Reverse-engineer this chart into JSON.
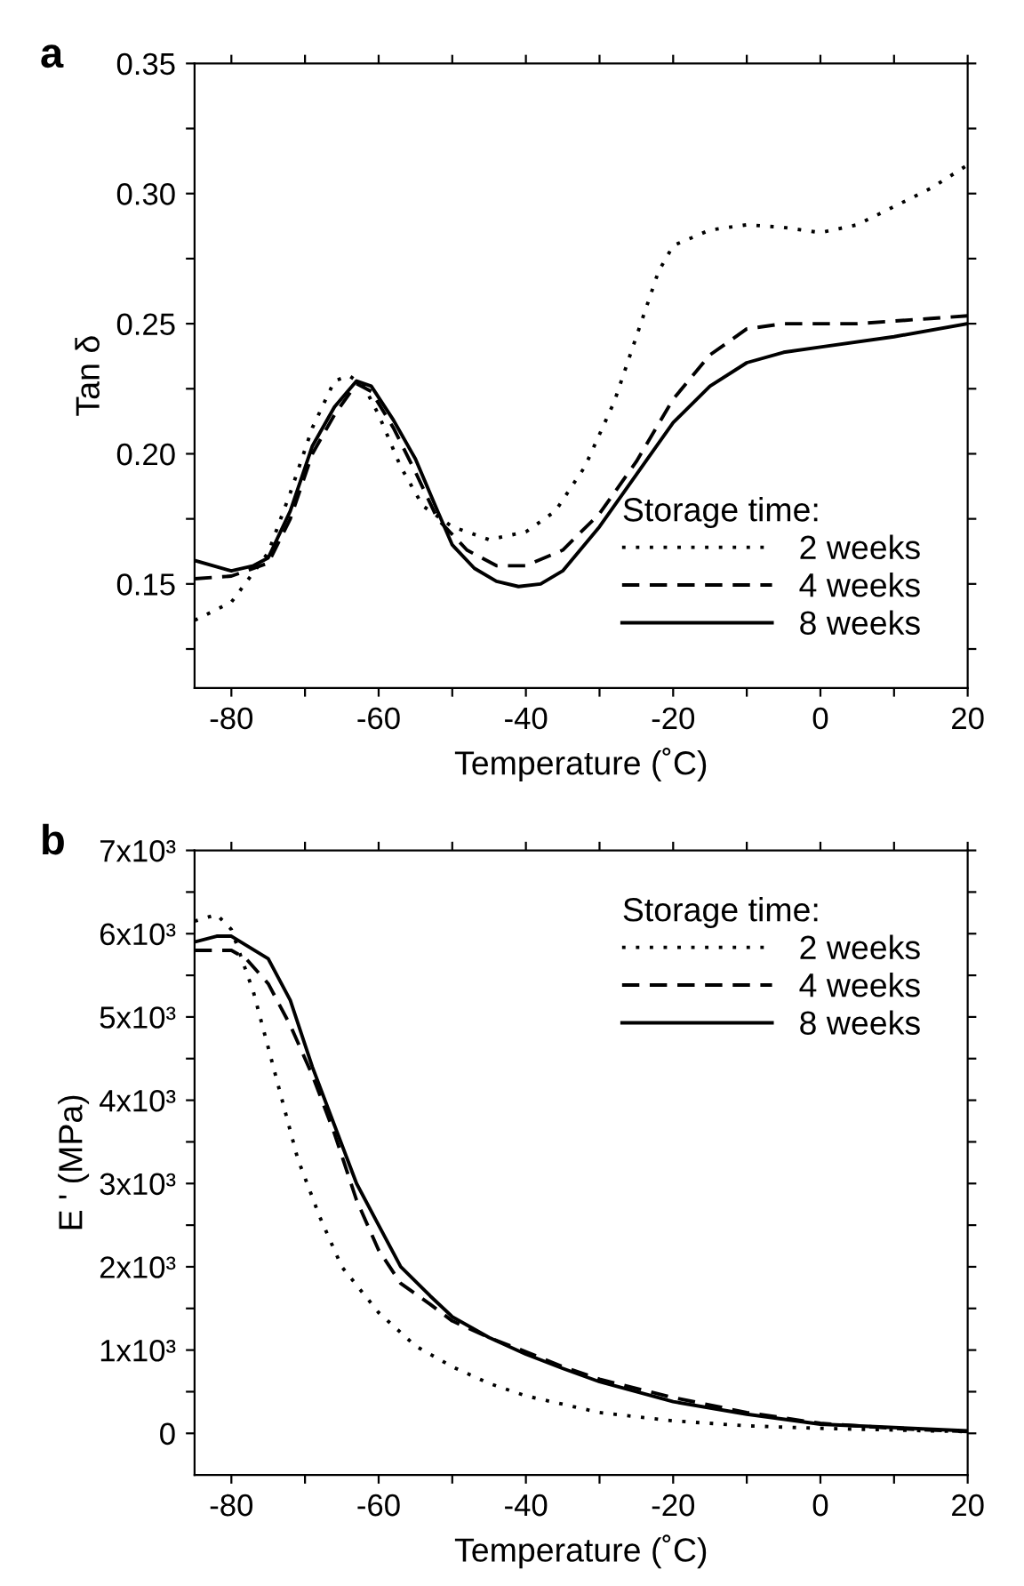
{
  "chart_data": [
    {
      "type": "line",
      "title": "a",
      "xlabel": "Temperature (˚C)",
      "ylabel": "Tan δ",
      "legend_title": "Storage time:",
      "legend": "bottom right",
      "grid": false,
      "xlim": [
        -85,
        20
      ],
      "xticks": [
        -80,
        {
          "value": -70,
          "label": null
        },
        -60,
        {
          "value": -50,
          "label": null
        },
        -40,
        {
          "value": -30,
          "label": null
        },
        -20,
        {
          "value": -10,
          "label": null
        },
        0,
        {
          "value": 10,
          "label": null
        },
        20
      ],
      "ylim": [
        0.11,
        0.35
      ],
      "yticks": [
        {
          "value": 0.125,
          "label": null
        },
        {
          "value": 0.15,
          "label": "0.15"
        },
        {
          "value": 0.175,
          "label": null
        },
        {
          "value": 0.2,
          "label": "0.20"
        },
        {
          "value": 0.225,
          "label": null
        },
        {
          "value": 0.25,
          "label": "0.25"
        },
        {
          "value": 0.275,
          "label": null
        },
        {
          "value": 0.3,
          "label": "0.30"
        },
        {
          "value": 0.325,
          "label": null
        },
        {
          "value": 0.35,
          "label": "0.35"
        }
      ],
      "series": [
        {
          "name": "2 weeks",
          "color": "#000000",
          "line_style": "dotted",
          "x": [
            -85,
            -80,
            -75,
            -72,
            -69,
            -66,
            -64,
            -62,
            -60,
            -57,
            -54,
            -50,
            -45,
            -40,
            -36,
            -32,
            -28,
            -25,
            -22,
            -20,
            -15,
            -10,
            -5,
            0,
            5,
            10,
            15,
            20
          ],
          "values": [
            0.136,
            0.143,
            0.162,
            0.185,
            0.21,
            0.228,
            0.23,
            0.226,
            0.215,
            0.195,
            0.18,
            0.172,
            0.167,
            0.17,
            0.178,
            0.195,
            0.22,
            0.245,
            0.27,
            0.28,
            0.286,
            0.288,
            0.287,
            0.285,
            0.288,
            0.295,
            0.302,
            0.311
          ]
        },
        {
          "name": "4 weeks",
          "color": "#000000",
          "line_style": "dashed",
          "x": [
            -85,
            -80,
            -75,
            -72,
            -69,
            -66,
            -63,
            -61,
            -58,
            -55,
            -52,
            -48,
            -44,
            -40,
            -35,
            -30,
            -25,
            -20,
            -15,
            -10,
            -5,
            0,
            5,
            10,
            15,
            20
          ],
          "values": [
            0.152,
            0.153,
            0.158,
            0.175,
            0.2,
            0.215,
            0.227,
            0.224,
            0.21,
            0.193,
            0.175,
            0.163,
            0.157,
            0.157,
            0.163,
            0.177,
            0.197,
            0.221,
            0.238,
            0.248,
            0.25,
            0.25,
            0.25,
            0.251,
            0.252,
            0.253
          ]
        },
        {
          "name": "8 weeks",
          "color": "#000000",
          "line_style": "solid",
          "x": [
            -85,
            -80,
            -77,
            -75,
            -72,
            -69,
            -66,
            -63,
            -61,
            -58,
            -55,
            -52,
            -50,
            -47,
            -44,
            -41,
            -38,
            -35,
            -30,
            -25,
            -20,
            -15,
            -10,
            -5,
            0,
            10,
            20
          ],
          "values": [
            0.159,
            0.155,
            0.157,
            0.16,
            0.178,
            0.203,
            0.218,
            0.228,
            0.226,
            0.213,
            0.198,
            0.178,
            0.165,
            0.156,
            0.151,
            0.149,
            0.15,
            0.155,
            0.172,
            0.192,
            0.212,
            0.226,
            0.235,
            0.239,
            0.241,
            0.245,
            0.25
          ]
        }
      ]
    },
    {
      "type": "line",
      "title": "b",
      "xlabel": "Temperature (˚C)",
      "ylabel": "E ' (MPa)",
      "legend_title": "Storage time:",
      "legend": "top right",
      "grid": false,
      "xlim": [
        -85,
        20
      ],
      "xticks": [
        -80,
        {
          "value": -70,
          "label": null
        },
        -60,
        {
          "value": -50,
          "label": null
        },
        -40,
        {
          "value": -30,
          "label": null
        },
        -20,
        {
          "value": -10,
          "label": null
        },
        0,
        {
          "value": 10,
          "label": null
        },
        20
      ],
      "ylim": [
        -500,
        7000
      ],
      "yticks": [
        0,
        {
          "value": 500,
          "label": null
        },
        {
          "value": 1000,
          "label": "1x10³"
        },
        {
          "value": 1500,
          "label": null
        },
        {
          "value": 2000,
          "label": "2x10³"
        },
        {
          "value": 2500,
          "label": null
        },
        {
          "value": 3000,
          "label": "3x10³"
        },
        {
          "value": 3500,
          "label": null
        },
        {
          "value": 4000,
          "label": "4x10³"
        },
        {
          "value": 4500,
          "label": null
        },
        {
          "value": 5000,
          "label": "5x10³"
        },
        {
          "value": 5500,
          "label": null
        },
        {
          "value": 6000,
          "label": "6x10³"
        },
        {
          "value": 6500,
          "label": null
        },
        {
          "value": 7000,
          "label": "7x10³"
        }
      ],
      "series": [
        {
          "name": "2 weeks",
          "color": "#000000",
          "line_style": "dotted",
          "x": [
            -85,
            -82,
            -80,
            -77,
            -74,
            -71,
            -68,
            -65,
            -60,
            -55,
            -50,
            -45,
            -40,
            -30,
            -20,
            -10,
            0,
            10,
            20
          ],
          "values": [
            6150,
            6230,
            6050,
            5300,
            4300,
            3300,
            2600,
            2000,
            1450,
            1050,
            800,
            600,
            450,
            250,
            150,
            90,
            60,
            40,
            20
          ]
        },
        {
          "name": "4 weeks",
          "color": "#000000",
          "line_style": "dashed",
          "x": [
            -85,
            -80,
            -78,
            -75,
            -72,
            -69,
            -66,
            -63,
            -60,
            -57,
            -53,
            -50,
            -45,
            -40,
            -35,
            -30,
            -20,
            -10,
            0,
            10,
            20
          ],
          "values": [
            5800,
            5800,
            5700,
            5400,
            4900,
            4300,
            3600,
            2800,
            2200,
            1800,
            1550,
            1350,
            1150,
            980,
            800,
            650,
            430,
            250,
            120,
            60,
            20
          ]
        },
        {
          "name": "8 weeks",
          "color": "#000000",
          "line_style": "solid",
          "x": [
            -85,
            -82,
            -80,
            -75,
            -72,
            -69,
            -66,
            -63,
            -60,
            -57,
            -53,
            -50,
            -45,
            -40,
            -35,
            -30,
            -20,
            -10,
            0,
            10,
            20
          ],
          "values": [
            5900,
            5970,
            5970,
            5700,
            5200,
            4400,
            3700,
            3000,
            2500,
            2000,
            1650,
            1400,
            1150,
            950,
            780,
            620,
            380,
            230,
            110,
            70,
            30
          ]
        }
      ]
    }
  ]
}
